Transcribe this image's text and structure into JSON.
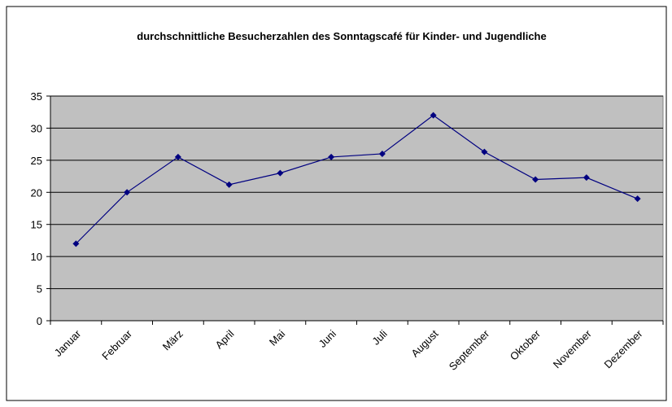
{
  "chart_data": {
    "type": "line",
    "title": "durchschnittliche Besucherzahlen des Sonntagscafé für Kinder- und Jugendliche",
    "categories": [
      "Januar",
      "Februar",
      "März",
      "April",
      "Mai",
      "Juni",
      "Juli",
      "August",
      "September",
      "Oktober",
      "November",
      "Dezember"
    ],
    "series": [
      {
        "color": "#000080",
        "values": [
          12,
          20,
          25.5,
          21.2,
          23,
          25.5,
          26,
          32,
          26.3,
          22,
          22.3,
          19
        ]
      }
    ],
    "ylim": [
      0,
      35
    ],
    "yticks": [
      0,
      5,
      10,
      15,
      20,
      25,
      30,
      35
    ],
    "grid": true
  }
}
